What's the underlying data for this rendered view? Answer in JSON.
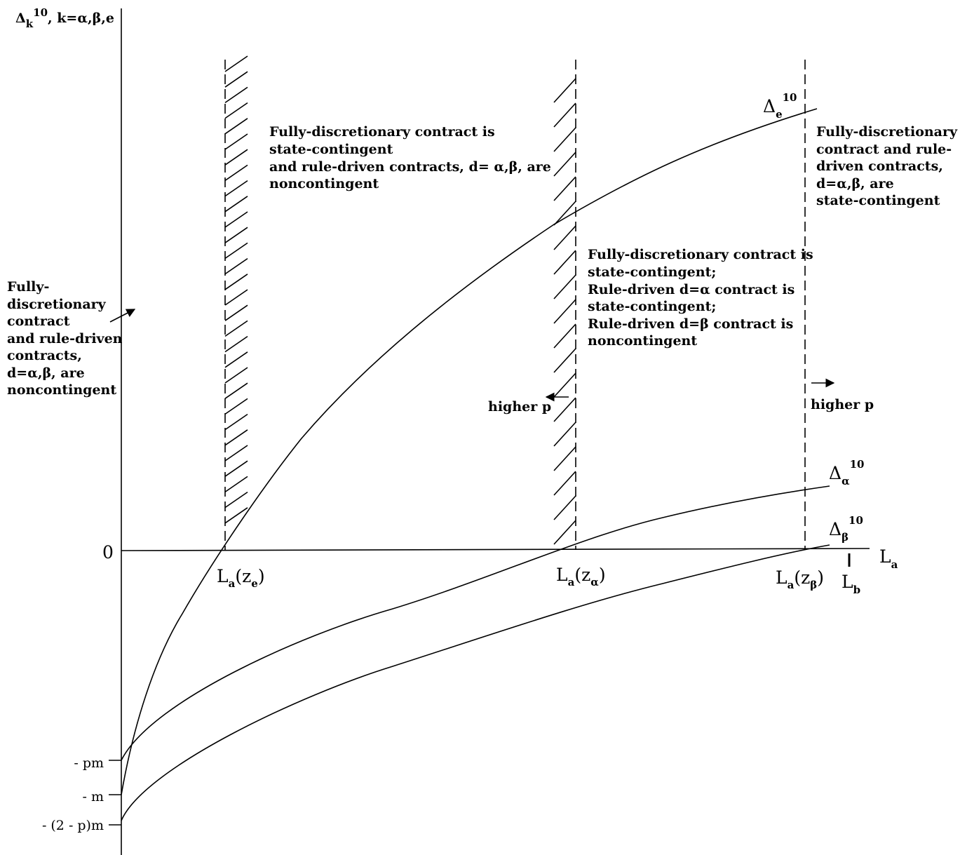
{
  "y_axis_label": {
    "delta": "Δ",
    "sub": "k",
    "sup": "10",
    "rest": ", k=α,β,e"
  },
  "x_axis_label": {
    "main": "L",
    "sub": "a"
  },
  "origin_label": "0",
  "y_ticks": [
    "- pm",
    "- m",
    "- (2 - p)m"
  ],
  "x_markers": {
    "ze": {
      "main": "L",
      "sub": "a",
      "arg_open": "(z",
      "arg_sub": "e",
      "arg_close": ")"
    },
    "za": {
      "main": "L",
      "sub": "a",
      "arg_open": "(z",
      "arg_sub": "α",
      "arg_close": ")"
    },
    "zb": {
      "main": "L",
      "sub": "a",
      "arg_open": "(z",
      "arg_sub": "β",
      "arg_close": ")"
    },
    "lb": {
      "main": "L",
      "sub": "b"
    }
  },
  "curve_labels": {
    "e": {
      "main": "Δ",
      "sub": "e",
      "sup": "10"
    },
    "alpha": {
      "main": "Δ",
      "sub": "α",
      "sup": "10"
    },
    "beta": {
      "main": "Δ",
      "sub": "β",
      "sup": "10"
    }
  },
  "regions": {
    "left": [
      "Fully-",
      "discretionary",
      "contract",
      "and rule-driven",
      "contracts,",
      "d=α,β, are",
      "noncontingent"
    ],
    "top_middle": [
      "Fully-discretionary contract is",
      "state-contingent",
      "and rule-driven contracts, d= α,β, are",
      "noncontingent"
    ],
    "center": [
      "Fully-discretionary contract is",
      "state-contingent;",
      "Rule-driven d=α contract is",
      "state-contingent;",
      "Rule-driven d=β contract is",
      "noncontingent"
    ],
    "right": [
      "Fully-discretionary",
      "contract and rule-",
      "driven contracts,",
      "d=α,β, are",
      "state-contingent"
    ]
  },
  "arrows": {
    "higher_p_left": "higher p",
    "higher_p_right": "higher p"
  }
}
